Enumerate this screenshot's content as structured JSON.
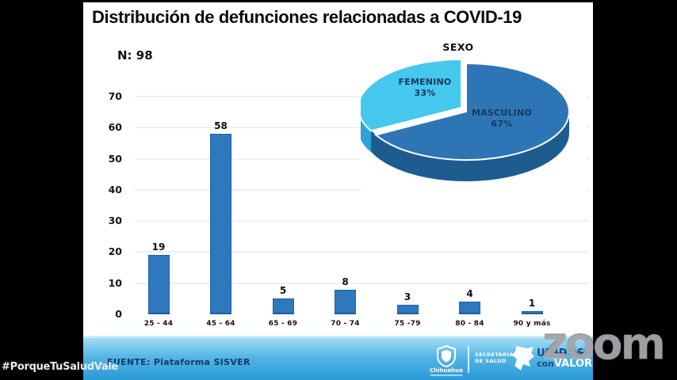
{
  "slide": {
    "title": "Distribución de defunciones relacionadas a COVID-19",
    "n_label": "N: 98"
  },
  "chart_data": [
    {
      "type": "bar",
      "title": "",
      "categories": [
        "25 - 44",
        "45 - 64",
        "65 - 69",
        "70 - 74",
        "75 -79",
        "80 - 84",
        "90 y más"
      ],
      "values": [
        19,
        58,
        5,
        8,
        3,
        4,
        1
      ],
      "xlabel": "",
      "ylabel": "",
      "ylim": [
        0,
        70
      ],
      "yticks": [
        0,
        10,
        20,
        30,
        40,
        50,
        60,
        70
      ],
      "grid": true,
      "bar_color": "#2e78bd",
      "n_total": 98
    },
    {
      "type": "pie",
      "title": "SEXO",
      "labels": [
        "FEMENINO",
        "MASCULINO"
      ],
      "values": [
        33,
        67
      ],
      "unit": "%",
      "colors": [
        "#45c8ee",
        "#2e75b6"
      ],
      "side_colors": [
        "#2ba3d4",
        "#1e5c90"
      ],
      "style": "3d-exploded"
    }
  ],
  "footer": {
    "source": "FUENTE: Plataforma SISVER",
    "chihuahua_label": "Chihuahua",
    "secretaria_line1": "SECRETARÍA",
    "secretaria_line2": "DE SALUD",
    "unidos_line1": "UNIDOS",
    "unidos_con": "con",
    "unidos_valor": "VALOR"
  },
  "overlays": {
    "watermark": "zoom",
    "hashtag": "#PorqueTuSaludVale"
  },
  "colors": {
    "background": "#000000",
    "slide_bg": "#ffffff",
    "label_navy": "#17375e",
    "footer_top": "#a0ddf6",
    "footer_bottom": "#2a9ad8"
  }
}
